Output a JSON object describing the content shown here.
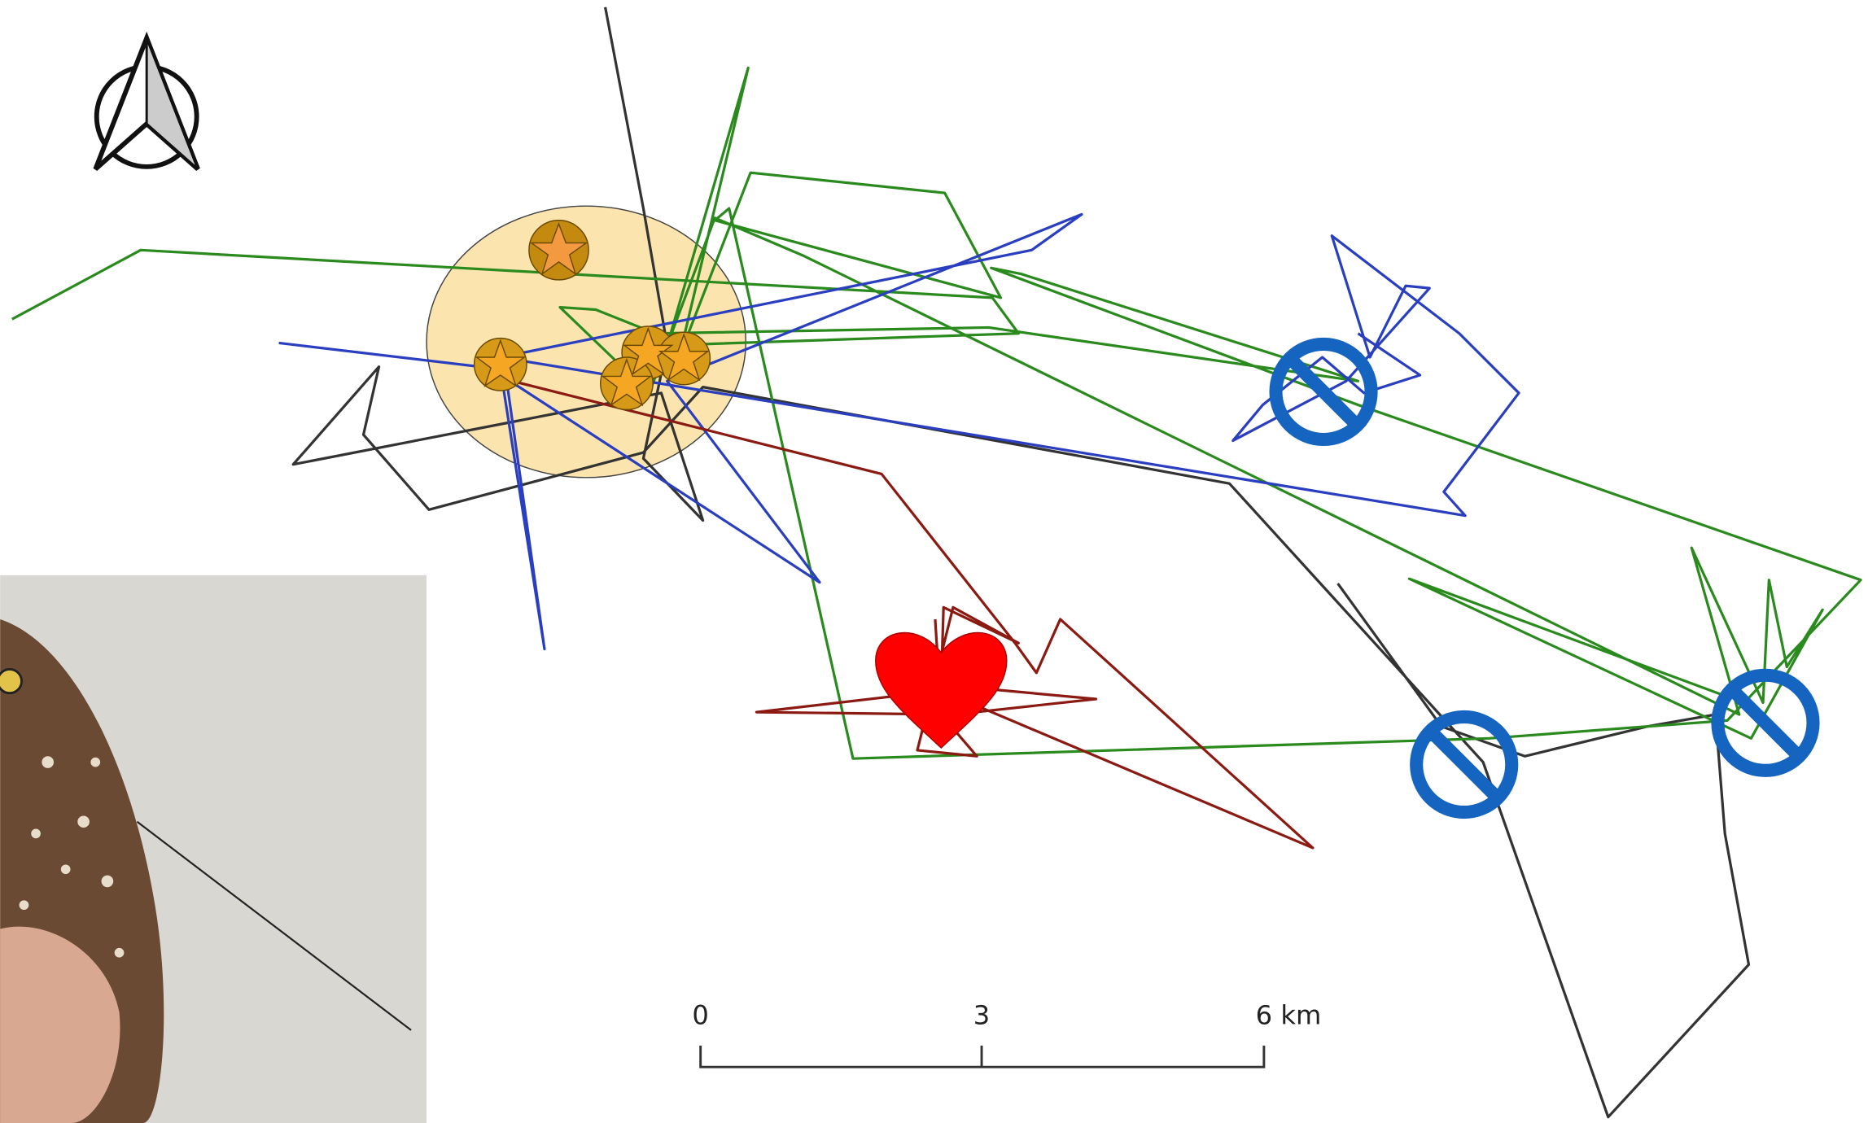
{
  "scale_bar": {
    "labels": [
      "0",
      "3",
      "6 km"
    ]
  }
}
